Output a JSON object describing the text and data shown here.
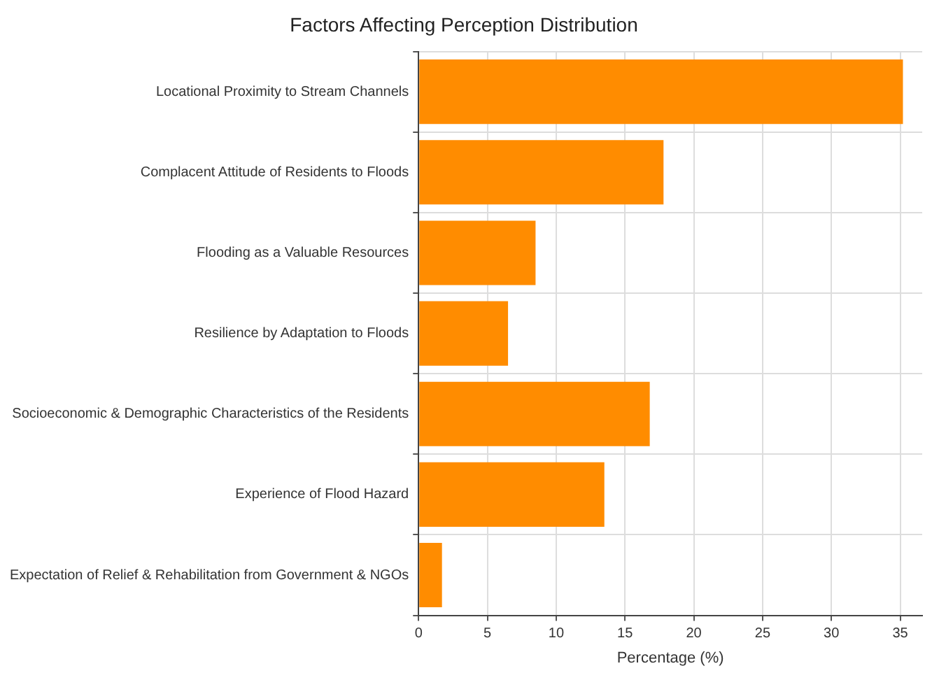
{
  "chart_data": {
    "type": "bar",
    "orientation": "horizontal",
    "title": "Factors Affecting Perception Distribution",
    "xlabel": "Percentage (%)",
    "categories": [
      "Locational Proximity to Stream Channels",
      "Complacent Attitude of Residents to Floods",
      "Flooding as a Valuable Resources",
      "Resilience by Adaptation to Floods",
      "Socioeconomic & Demographic Characteristics of the Residents",
      "Experience of Flood Hazard",
      "Expectation of Relief & Rehabilitation from Government & NGOs"
    ],
    "values": [
      35.2,
      17.8,
      8.5,
      6.5,
      16.8,
      13.5,
      1.7
    ],
    "color": "#ff8c00",
    "xlim": [
      0,
      36.6
    ],
    "xticks": [
      0,
      5,
      10,
      15,
      20,
      25,
      30,
      35
    ],
    "grid": true,
    "legend": false
  }
}
